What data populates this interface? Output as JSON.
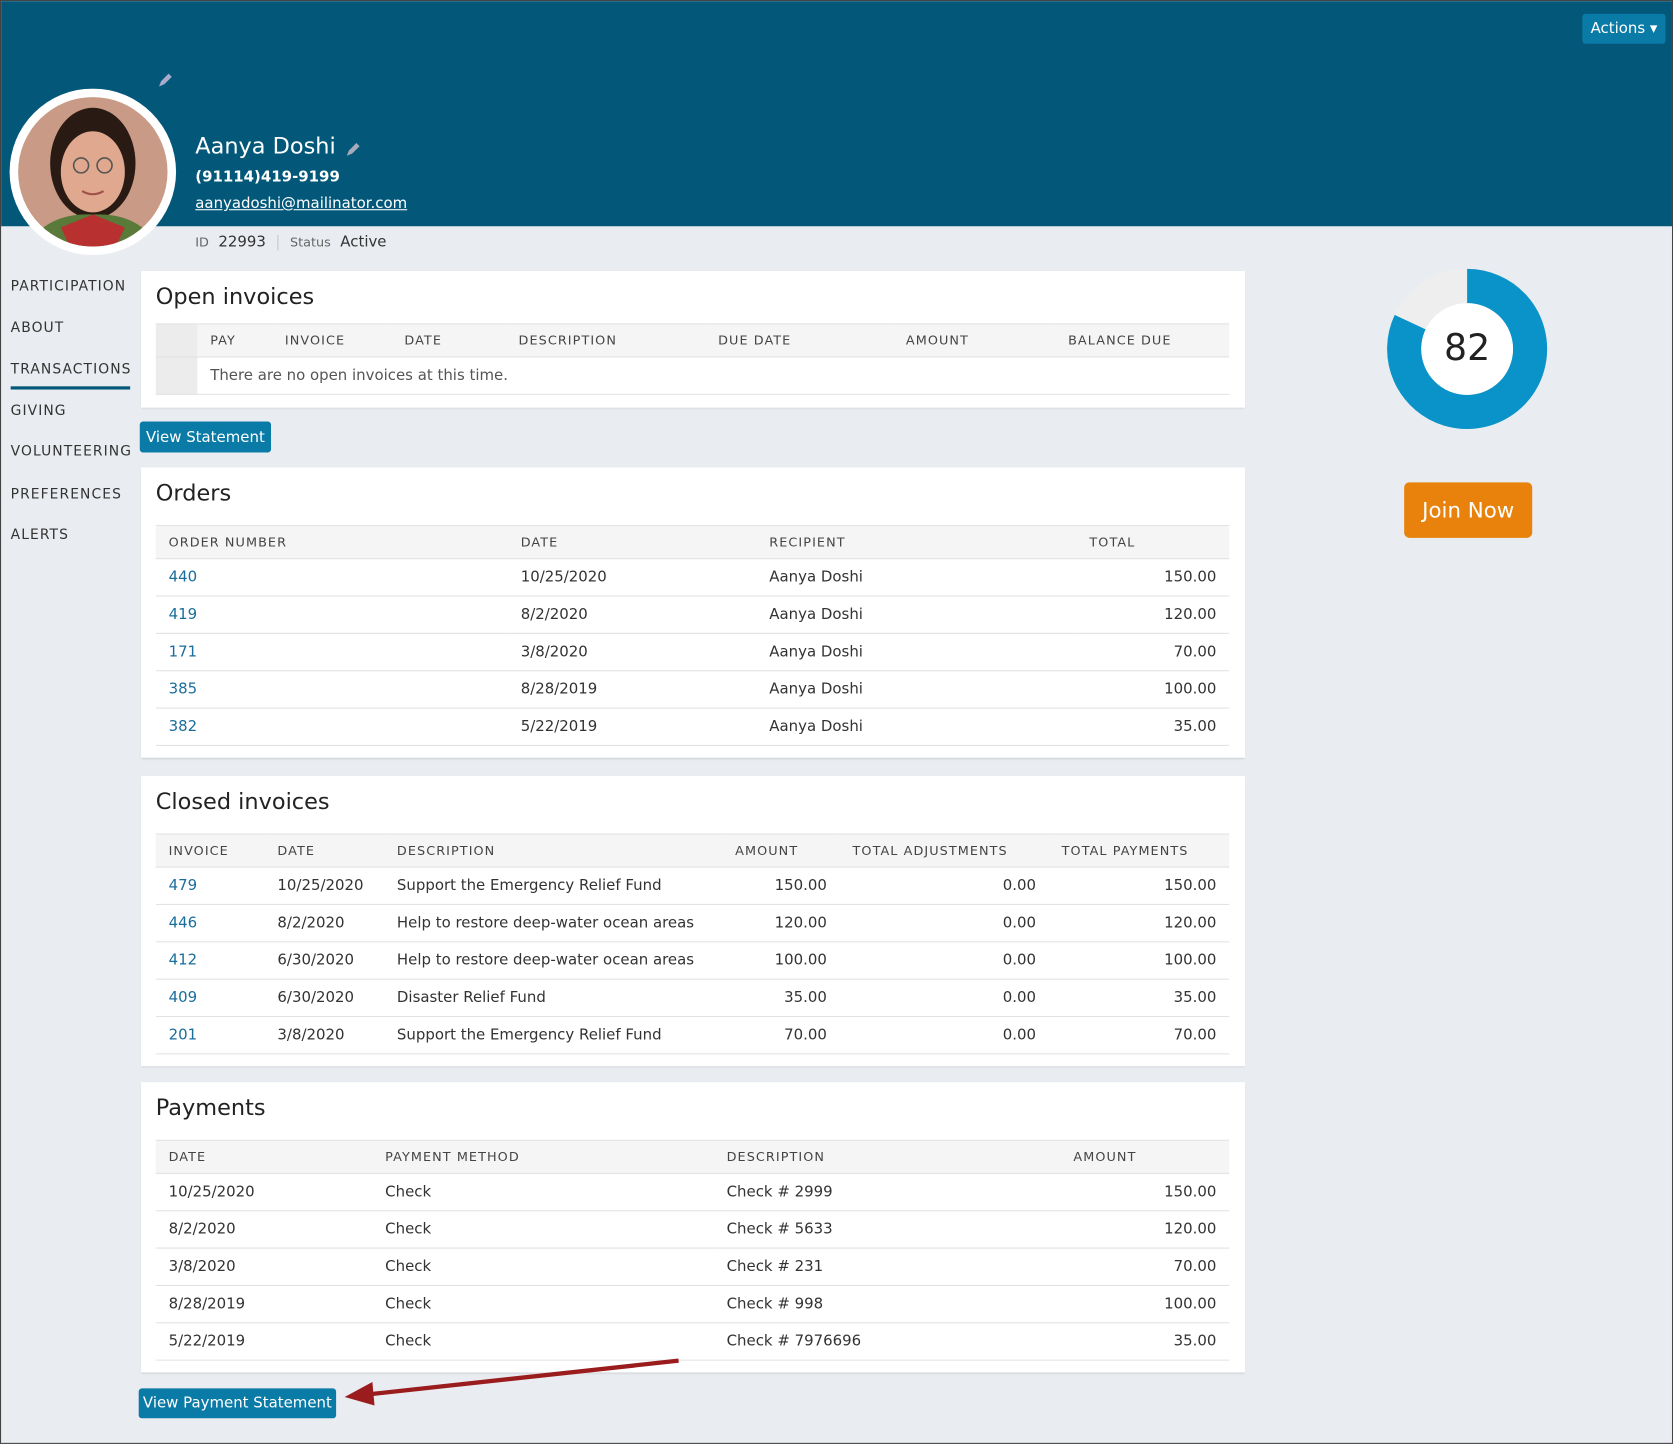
{
  "header": {
    "actions": "Actions",
    "name": "Aanya Doshi",
    "phone": "(91114)419-9199",
    "email": "aanyadoshi@mailinator.com",
    "id_label": "ID",
    "id": "22993",
    "status_label": "Status",
    "status": "Active"
  },
  "nav": {
    "items": [
      "PARTICIPATION",
      "ABOUT",
      "TRANSACTIONS",
      "GIVING",
      "VOLUNTEERING",
      "PREFERENCES",
      "ALERTS"
    ],
    "active": 2
  },
  "open_invoices": {
    "title": "Open invoices",
    "columns": [
      "PAY",
      "INVOICE",
      "DATE",
      "DESCRIPTION",
      "DUE DATE",
      "AMOUNT",
      "BALANCE DUE"
    ],
    "empty_message": "There are no open invoices at this time.",
    "button": "View Statement"
  },
  "orders": {
    "title": "Orders",
    "columns": [
      "ORDER NUMBER",
      "DATE",
      "RECIPIENT",
      "TOTAL"
    ],
    "rows": [
      [
        "440",
        "10/25/2020",
        "Aanya Doshi",
        "150.00"
      ],
      [
        "419",
        "8/2/2020",
        "Aanya Doshi",
        "120.00"
      ],
      [
        "171",
        "3/8/2020",
        "Aanya Doshi",
        "70.00"
      ],
      [
        "385",
        "8/28/2019",
        "Aanya Doshi",
        "100.00"
      ],
      [
        "382",
        "5/22/2019",
        "Aanya Doshi",
        "35.00"
      ]
    ]
  },
  "closed_invoices": {
    "title": "Closed invoices",
    "columns": [
      "INVOICE",
      "DATE",
      "DESCRIPTION",
      "AMOUNT",
      "TOTAL ADJUSTMENTS",
      "TOTAL PAYMENTS"
    ],
    "rows": [
      [
        "479",
        "10/25/2020",
        "Support the Emergency Relief Fund",
        "150.00",
        "0.00",
        "150.00"
      ],
      [
        "446",
        "8/2/2020",
        "Help to restore deep-water ocean areas",
        "120.00",
        "0.00",
        "120.00"
      ],
      [
        "412",
        "6/30/2020",
        "Help to restore deep-water ocean areas",
        "100.00",
        "0.00",
        "100.00"
      ],
      [
        "409",
        "6/30/2020",
        "Disaster Relief Fund",
        "35.00",
        "0.00",
        "35.00"
      ],
      [
        "201",
        "3/8/2020",
        "Support the Emergency Relief Fund",
        "70.00",
        "0.00",
        "70.00"
      ]
    ]
  },
  "payments": {
    "title": "Payments",
    "columns": [
      "DATE",
      "PAYMENT METHOD",
      "DESCRIPTION",
      "AMOUNT"
    ],
    "rows": [
      [
        "10/25/2020",
        "Check",
        "Check # 2999",
        "150.00"
      ],
      [
        "8/2/2020",
        "Check",
        "Check # 5633",
        "120.00"
      ],
      [
        "3/8/2020",
        "Check",
        "Check # 231",
        "70.00"
      ],
      [
        "8/28/2019",
        "Check",
        "Check # 998",
        "100.00"
      ],
      [
        "5/22/2019",
        "Check",
        "Check # 7976696",
        "35.00"
      ]
    ],
    "button": "View Payment Statement"
  },
  "score": {
    "value": 82,
    "button": "Join Now"
  }
}
